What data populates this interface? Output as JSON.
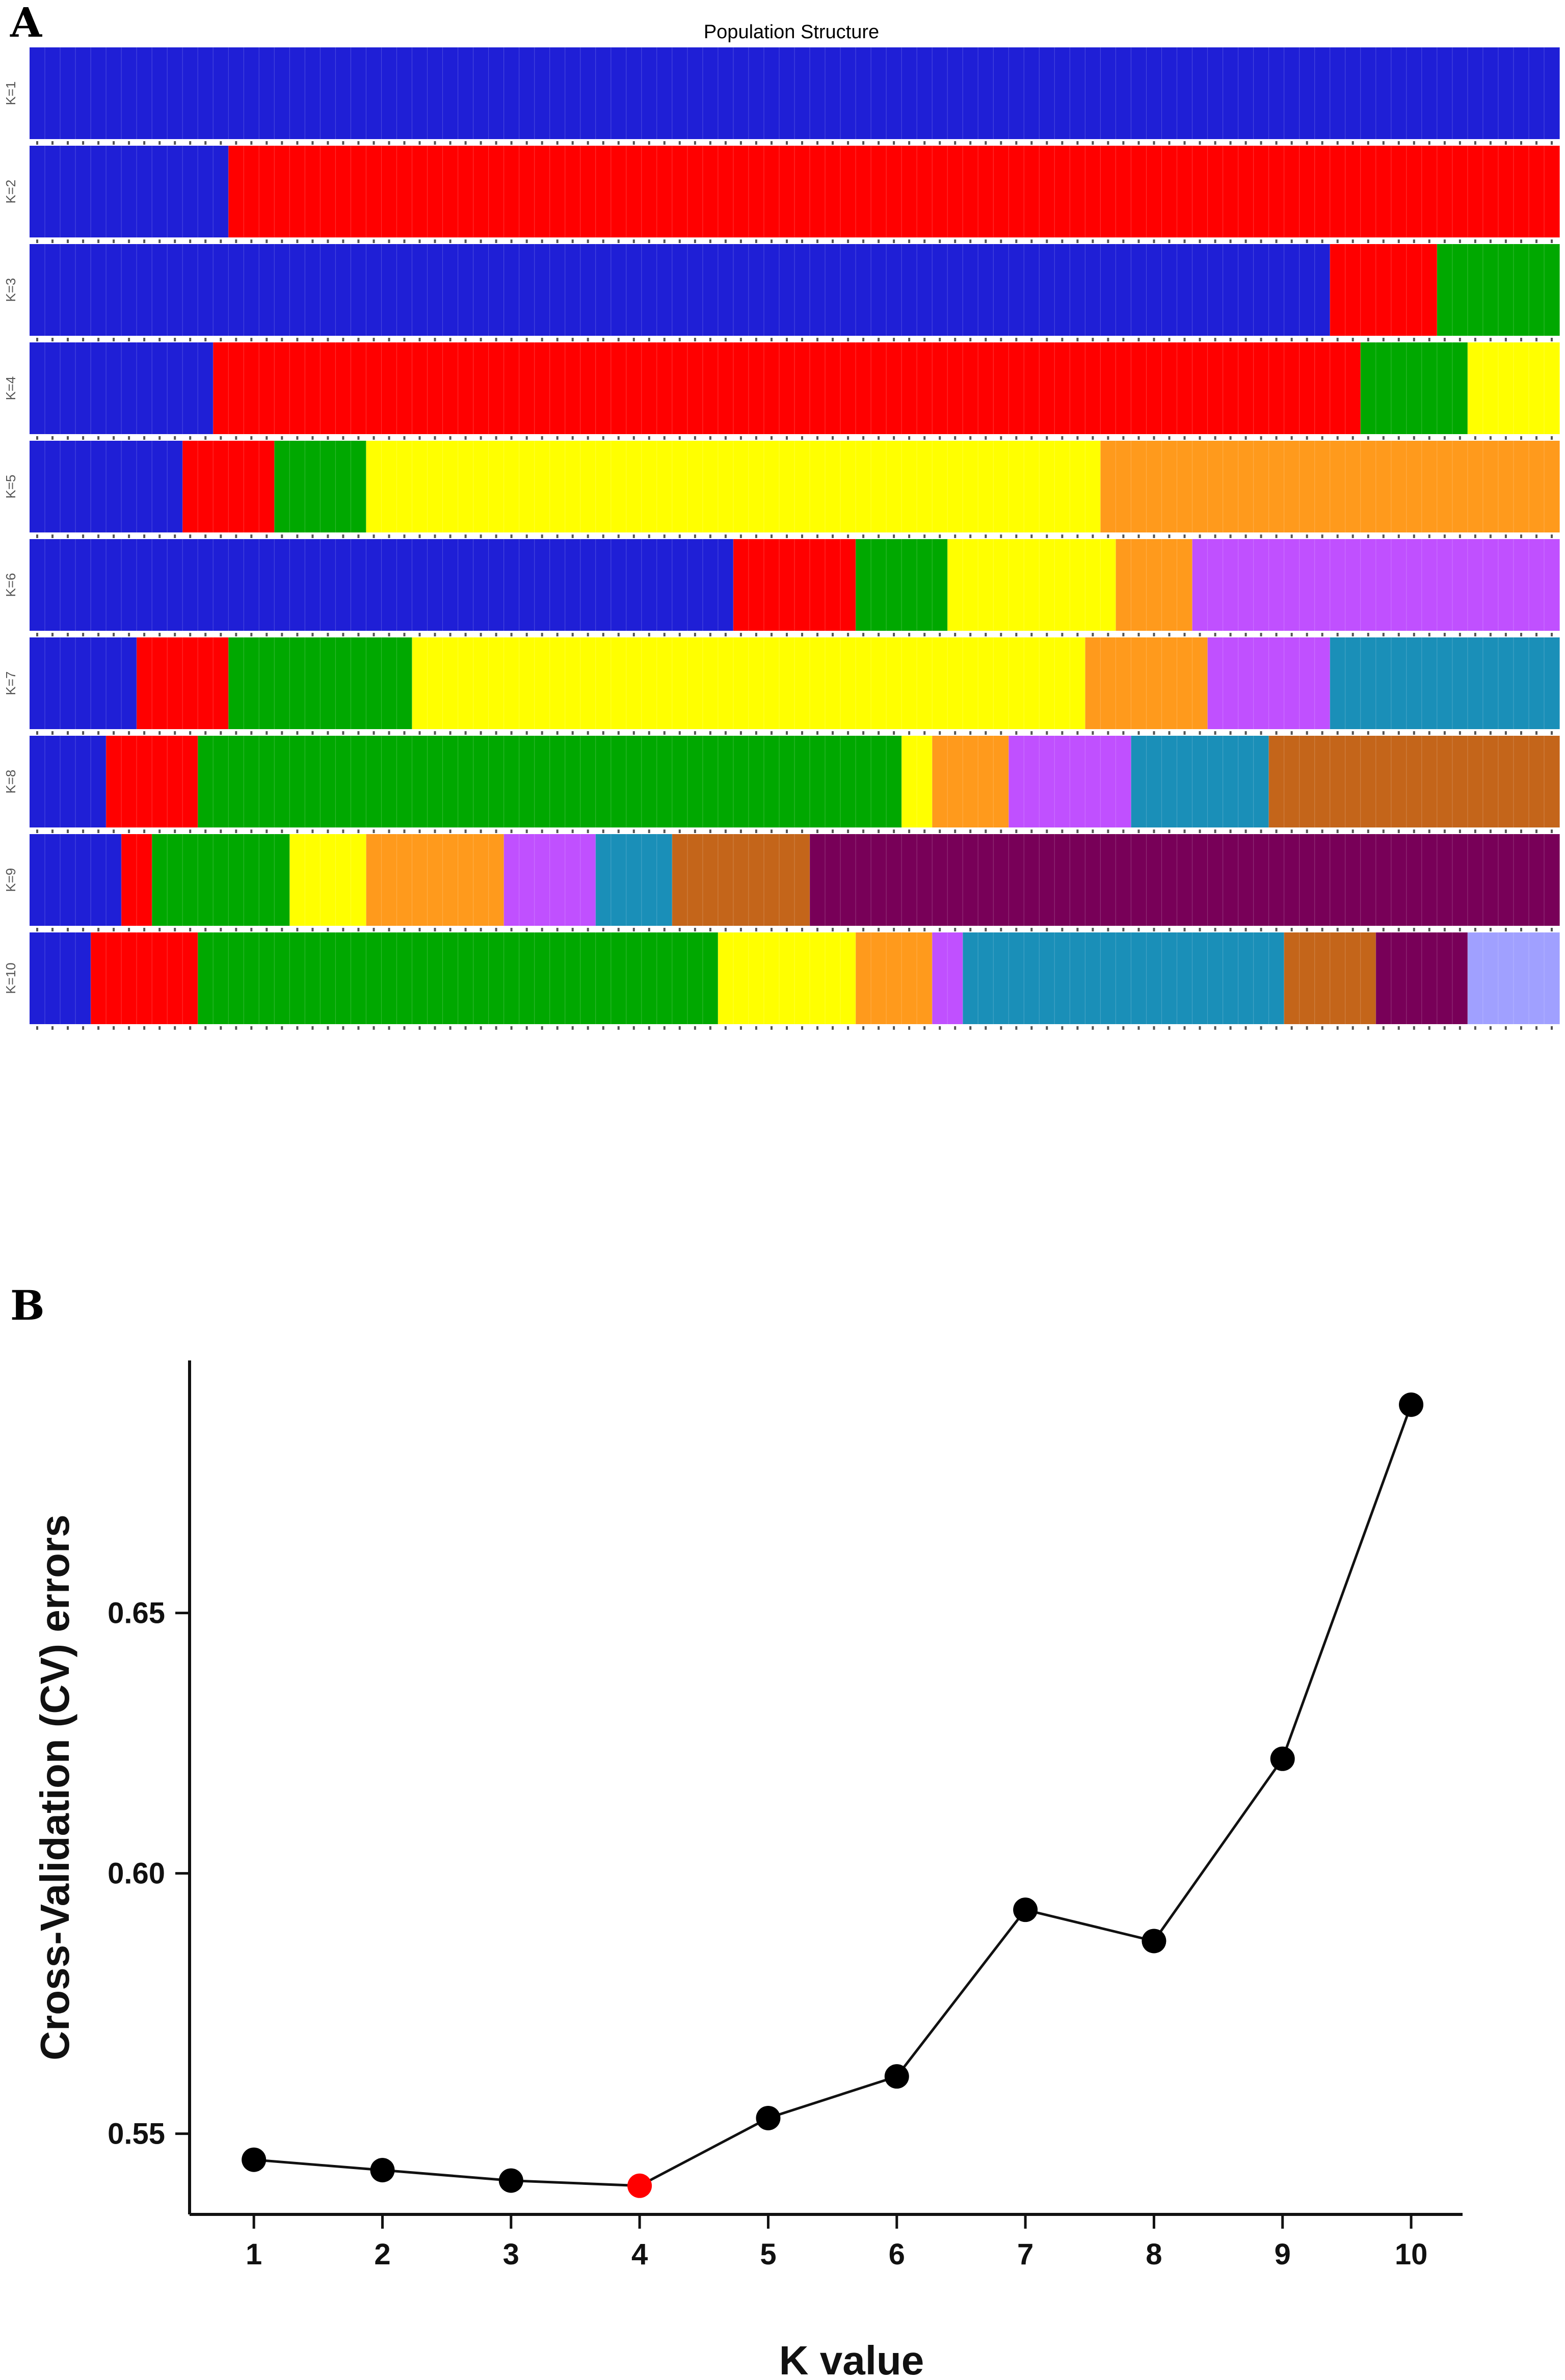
{
  "panel_a": {
    "letter": "A",
    "title": "Population Structure",
    "k_labels": [
      "K=1",
      "K=2",
      "K=3",
      "K=4",
      "K=5",
      "K=6",
      "K=7",
      "K=8",
      "K=9",
      "K=10"
    ],
    "palette": [
      "#1f1fd6",
      "#ff0000",
      "#00a800",
      "#ffff00",
      "#ff9a1c",
      "#c050ff",
      "#1a8fb8",
      "#c4651a",
      "#780058",
      "#a0a0ff"
    ],
    "palette_names": [
      "blue",
      "red",
      "green",
      "yellow",
      "orange",
      "violet",
      "teal",
      "brown",
      "maroon",
      "lavender"
    ]
  },
  "panel_b": {
    "letter": "B"
  },
  "chart_data": [
    {
      "type": "stacked-bar",
      "title": "Population Structure",
      "description_k": [
        1,
        2,
        3,
        4,
        5,
        6,
        7,
        8,
        9,
        10
      ],
      "n_samples": 100,
      "rows": [
        {
          "label": "K=1",
          "segments": [
            {
              "cluster": "blue",
              "start": 0,
              "end": 100
            }
          ]
        },
        {
          "label": "K=2",
          "segments": [
            {
              "cluster": "blue",
              "start": 0,
              "end": 13
            },
            {
              "cluster": "red",
              "start": 13,
              "end": 100
            }
          ]
        },
        {
          "label": "K=3",
          "segments": [
            {
              "cluster": "blue",
              "start": 0,
              "end": 85
            },
            {
              "cluster": "red",
              "start": 85,
              "end": 92
            },
            {
              "cluster": "green",
              "start": 92,
              "end": 100
            }
          ]
        },
        {
          "label": "K=4",
          "segments": [
            {
              "cluster": "blue",
              "start": 0,
              "end": 12
            },
            {
              "cluster": "red",
              "start": 12,
              "end": 87
            },
            {
              "cluster": "green",
              "start": 87,
              "end": 94
            },
            {
              "cluster": "yellow",
              "start": 94,
              "end": 100
            }
          ]
        },
        {
          "label": "K=5",
          "segments": [
            {
              "cluster": "blue",
              "start": 0,
              "end": 10
            },
            {
              "cluster": "red",
              "start": 10,
              "end": 16
            },
            {
              "cluster": "green",
              "start": 16,
              "end": 22
            },
            {
              "cluster": "yellow",
              "start": 22,
              "end": 70
            },
            {
              "cluster": "orange",
              "start": 70,
              "end": 100
            }
          ]
        },
        {
          "label": "K=6",
          "segments": [
            {
              "cluster": "blue",
              "start": 0,
              "end": 46
            },
            {
              "cluster": "red",
              "start": 46,
              "end": 54
            },
            {
              "cluster": "green",
              "start": 54,
              "end": 60
            },
            {
              "cluster": "yellow",
              "start": 60,
              "end": 71
            },
            {
              "cluster": "orange",
              "start": 71,
              "end": 76
            },
            {
              "cluster": "violet",
              "start": 76,
              "end": 100
            }
          ]
        },
        {
          "label": "K=7",
          "segments": [
            {
              "cluster": "blue",
              "start": 0,
              "end": 7
            },
            {
              "cluster": "red",
              "start": 7,
              "end": 13
            },
            {
              "cluster": "green",
              "start": 13,
              "end": 25
            },
            {
              "cluster": "yellow",
              "start": 25,
              "end": 69
            },
            {
              "cluster": "orange",
              "start": 69,
              "end": 77
            },
            {
              "cluster": "violet",
              "start": 77,
              "end": 85
            },
            {
              "cluster": "teal",
              "start": 85,
              "end": 100
            }
          ]
        },
        {
          "label": "K=8",
          "segments": [
            {
              "cluster": "blue",
              "start": 0,
              "end": 5
            },
            {
              "cluster": "red",
              "start": 5,
              "end": 11
            },
            {
              "cluster": "green",
              "start": 11,
              "end": 57
            },
            {
              "cluster": "yellow",
              "start": 57,
              "end": 59
            },
            {
              "cluster": "orange",
              "start": 59,
              "end": 64
            },
            {
              "cluster": "violet",
              "start": 64,
              "end": 72
            },
            {
              "cluster": "teal",
              "start": 72,
              "end": 81
            },
            {
              "cluster": "brown",
              "start": 81,
              "end": 100
            }
          ]
        },
        {
          "label": "K=9",
          "segments": [
            {
              "cluster": "blue",
              "start": 0,
              "end": 6
            },
            {
              "cluster": "red",
              "start": 6,
              "end": 8
            },
            {
              "cluster": "green",
              "start": 8,
              "end": 17
            },
            {
              "cluster": "yellow",
              "start": 17,
              "end": 22
            },
            {
              "cluster": "orange",
              "start": 22,
              "end": 31
            },
            {
              "cluster": "violet",
              "start": 31,
              "end": 37
            },
            {
              "cluster": "teal",
              "start": 37,
              "end": 42
            },
            {
              "cluster": "brown",
              "start": 42,
              "end": 51
            },
            {
              "cluster": "maroon",
              "start": 51,
              "end": 100
            }
          ]
        },
        {
          "label": "K=10",
          "segments": [
            {
              "cluster": "blue",
              "start": 0,
              "end": 4
            },
            {
              "cluster": "red",
              "start": 4,
              "end": 11
            },
            {
              "cluster": "green",
              "start": 11,
              "end": 45
            },
            {
              "cluster": "yellow",
              "start": 45,
              "end": 54
            },
            {
              "cluster": "orange",
              "start": 54,
              "end": 59
            },
            {
              "cluster": "violet",
              "start": 59,
              "end": 61
            },
            {
              "cluster": "teal",
              "start": 61,
              "end": 82
            },
            {
              "cluster": "brown",
              "start": 82,
              "end": 88
            },
            {
              "cluster": "maroon",
              "start": 88,
              "end": 94
            },
            {
              "cluster": "lavender",
              "start": 94,
              "end": 100
            }
          ]
        }
      ]
    },
    {
      "type": "line",
      "title": "",
      "xlabel": "K value",
      "ylabel": "Cross-Validation (CV) errors",
      "x": [
        1,
        2,
        3,
        4,
        5,
        6,
        7,
        8,
        9,
        10
      ],
      "y": [
        0.545,
        0.543,
        0.541,
        0.54,
        0.553,
        0.561,
        0.593,
        0.587,
        0.622,
        0.69
      ],
      "highlight_index": 3,
      "highlight_color": "#ff0000",
      "point_color": "#000000",
      "xticks": [
        "1",
        "2",
        "3",
        "4",
        "5",
        "6",
        "7",
        "8",
        "9",
        "10"
      ],
      "yticks": [
        0.55,
        0.6,
        0.65
      ],
      "ytick_labels": [
        "0.55",
        "0.60",
        "0.65"
      ],
      "xlim": [
        0.5,
        10.4
      ],
      "ylim": [
        0.5345,
        0.6985
      ]
    }
  ]
}
